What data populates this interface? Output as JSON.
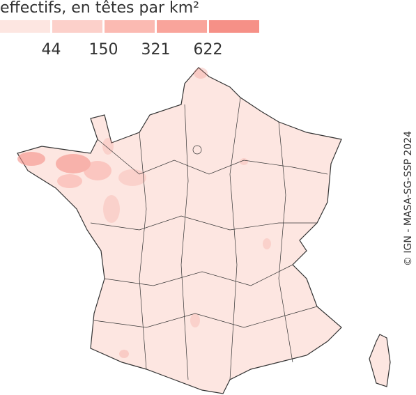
{
  "title": "effectifs, en têtes par km²",
  "legend": {
    "colors": [
      "#fde6e1",
      "#fcd0ca",
      "#fbbab2",
      "#f9a49b",
      "#f69087"
    ],
    "ticks": [
      44,
      150,
      321,
      622
    ]
  },
  "credit": "© IGN - MASA-SG-SSP 2024"
}
